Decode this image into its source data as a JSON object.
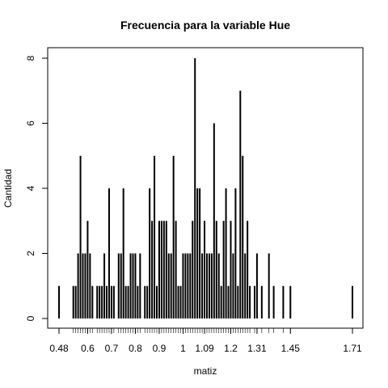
{
  "chart_data": {
    "type": "bar",
    "title": "Frecuencia para la variable Hue",
    "xlabel": "matiz",
    "ylabel": "Cantidad",
    "x_tick_labels": [
      "0.48",
      "0.6",
      "0.7",
      "0.8",
      "0.9",
      "1",
      "1.09",
      "1.2",
      "1.31",
      "1.45",
      "1.71"
    ],
    "y_tick_labels": [
      "0",
      "2",
      "4",
      "6",
      "8"
    ],
    "xlim": [
      0.48,
      1.71
    ],
    "ylim": [
      0,
      8
    ],
    "x": [
      0.48,
      0.54,
      0.55,
      0.56,
      0.57,
      0.58,
      0.59,
      0.6,
      0.61,
      0.62,
      0.64,
      0.65,
      0.66,
      0.67,
      0.68,
      0.69,
      0.7,
      0.71,
      0.73,
      0.74,
      0.75,
      0.76,
      0.77,
      0.78,
      0.79,
      0.8,
      0.81,
      0.82,
      0.84,
      0.85,
      0.86,
      0.87,
      0.88,
      0.89,
      0.9,
      0.91,
      0.92,
      0.93,
      0.94,
      0.95,
      0.96,
      0.97,
      0.98,
      0.99,
      1.0,
      1.01,
      1.02,
      1.03,
      1.04,
      1.05,
      1.06,
      1.07,
      1.08,
      1.09,
      1.1,
      1.11,
      1.12,
      1.13,
      1.14,
      1.15,
      1.16,
      1.17,
      1.18,
      1.19,
      1.2,
      1.21,
      1.22,
      1.23,
      1.24,
      1.25,
      1.26,
      1.27,
      1.28,
      1.3,
      1.31,
      1.33,
      1.36,
      1.38,
      1.42,
      1.45,
      1.71
    ],
    "values": [
      1,
      1,
      1,
      2,
      5,
      2,
      2,
      3,
      2,
      1,
      1,
      1,
      1,
      2,
      1,
      4,
      1,
      1,
      2,
      2,
      4,
      1,
      1,
      2,
      2,
      2,
      1,
      2,
      1,
      1,
      4,
      3,
      5,
      1,
      3,
      3,
      3,
      3,
      2,
      2,
      5,
      3,
      1,
      1,
      2,
      2,
      2,
      2,
      3,
      8,
      4,
      4,
      2,
      3,
      2,
      2,
      2,
      6,
      3,
      2,
      1,
      3,
      4,
      1,
      3,
      2,
      4,
      1,
      7,
      5,
      2,
      3,
      1,
      1,
      2,
      1,
      2,
      1,
      1,
      1,
      1
    ]
  }
}
